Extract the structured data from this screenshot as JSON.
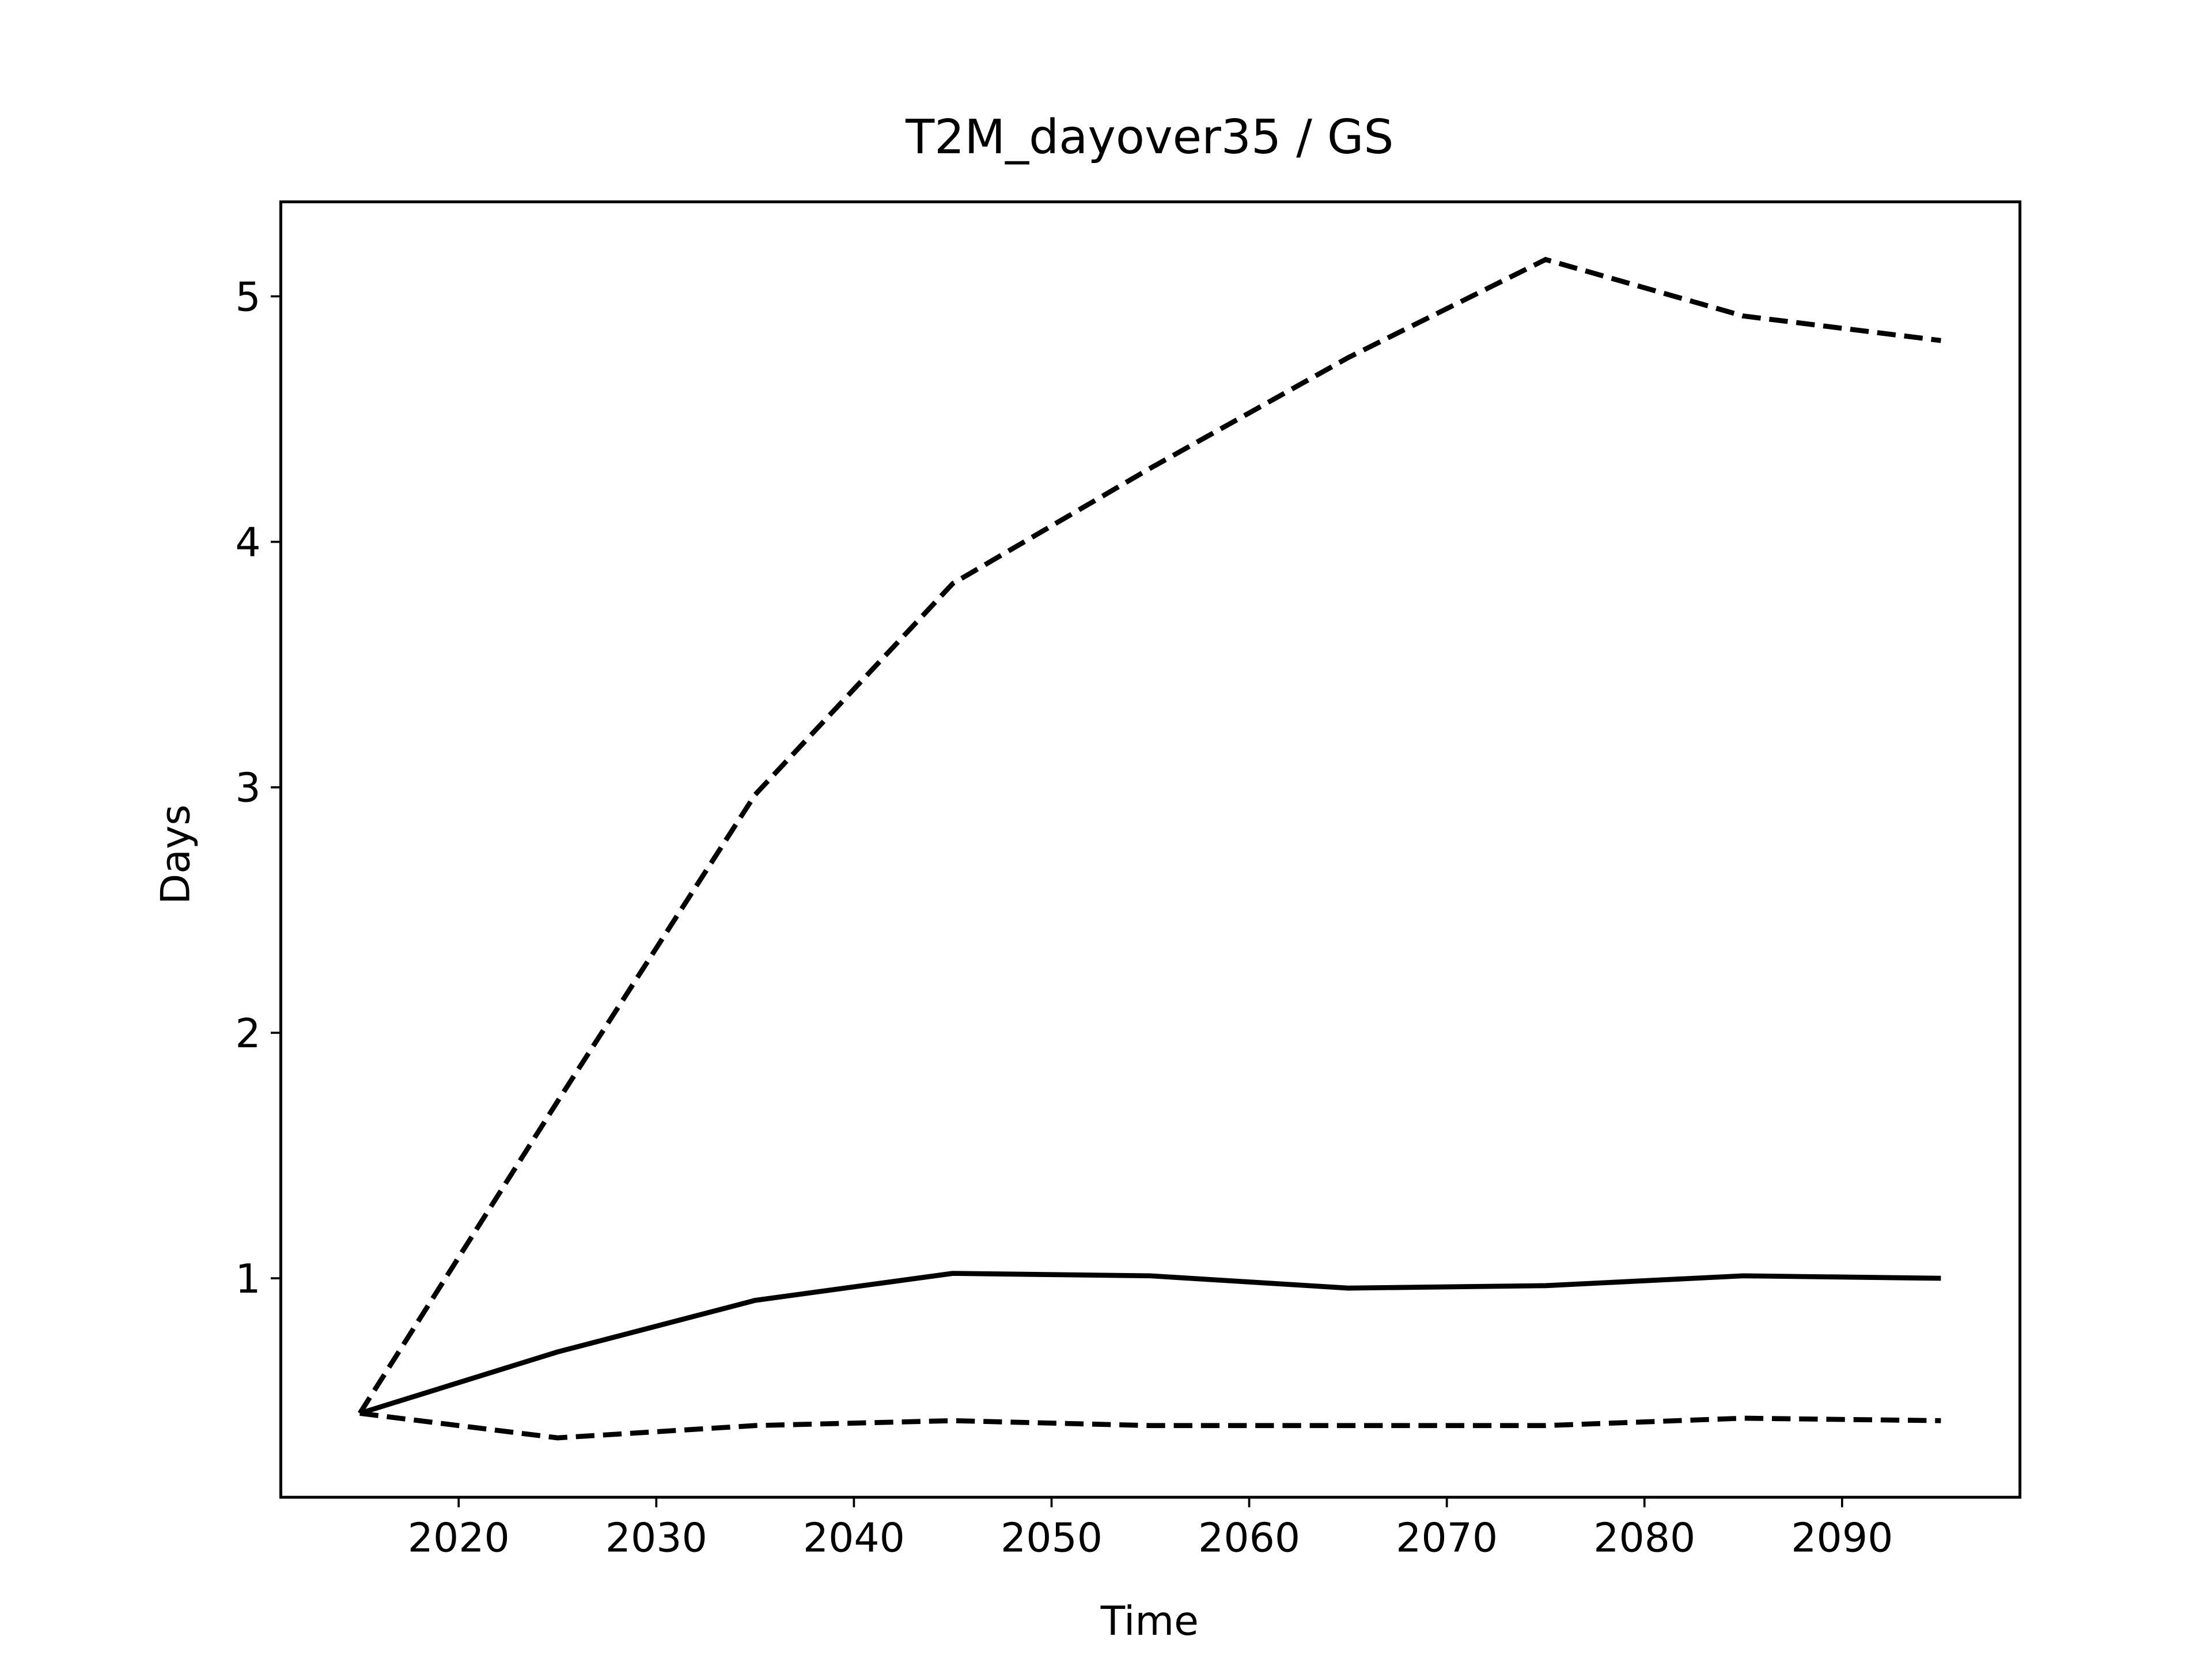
{
  "chart_data": {
    "type": "line",
    "title": "T2M_dayover35 / GS",
    "xlabel": "Time",
    "ylabel": "Days",
    "x": [
      2015,
      2025,
      2035,
      2045,
      2055,
      2065,
      2075,
      2085,
      2095
    ],
    "series": [
      {
        "color": "#000000",
        "linestyle": "solid",
        "values": [
          0.45,
          0.7,
          0.91,
          1.02,
          1.01,
          0.96,
          0.97,
          1.01,
          1.0
        ]
      },
      {
        "color": "#000000",
        "linestyle": "dashed",
        "values": [
          0.45,
          1.72,
          2.97,
          3.83,
          4.3,
          4.75,
          5.15,
          4.92,
          4.82
        ]
      },
      {
        "color": "#000000",
        "linestyle": "dashed",
        "values": [
          0.45,
          0.35,
          0.4,
          0.42,
          0.4,
          0.4,
          0.4,
          0.43,
          0.42
        ]
      }
    ],
    "xlim": [
      2011,
      2099
    ],
    "ylim": [
      0.108,
      5.385
    ],
    "xticks": [
      2020,
      2030,
      2040,
      2050,
      2060,
      2070,
      2080,
      2090
    ],
    "yticks": [
      1,
      2,
      3,
      4,
      5
    ],
    "grid": false
  }
}
